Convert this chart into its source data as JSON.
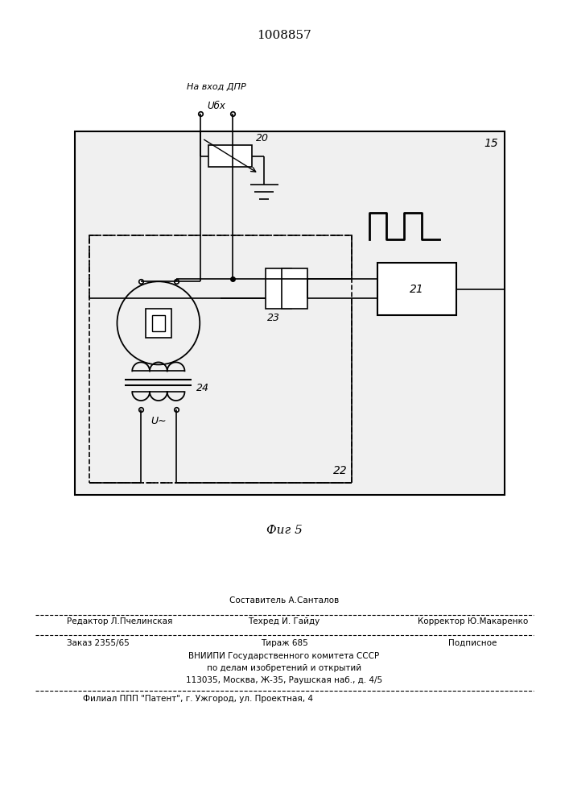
{
  "title": "1008857",
  "bg_color": "#ffffff",
  "line_color": "#000000",
  "title_fontsize": 11,
  "footer": {
    "sestavitel": "Составитель А.Санталов",
    "redaktor": "Редактор Л.Пчелинская",
    "tehred": "Техред И. Гайду",
    "korrektor": "Корректор Ю.Макаренко",
    "zakaz": "Заказ 2355/65",
    "tirazh": "Тираж 685",
    "podpisnoe": "Подписное",
    "vniiipi": "ВНИИПИ Государственного комитета СССР",
    "po_delam": "по делам изобретений и открытий",
    "address": "113035, Москва, Ж-35, Раушская наб., д. 4/5",
    "filial": "Филиал ППП \"Патент\", г. Ужгород, ул. Проектная, 4"
  }
}
